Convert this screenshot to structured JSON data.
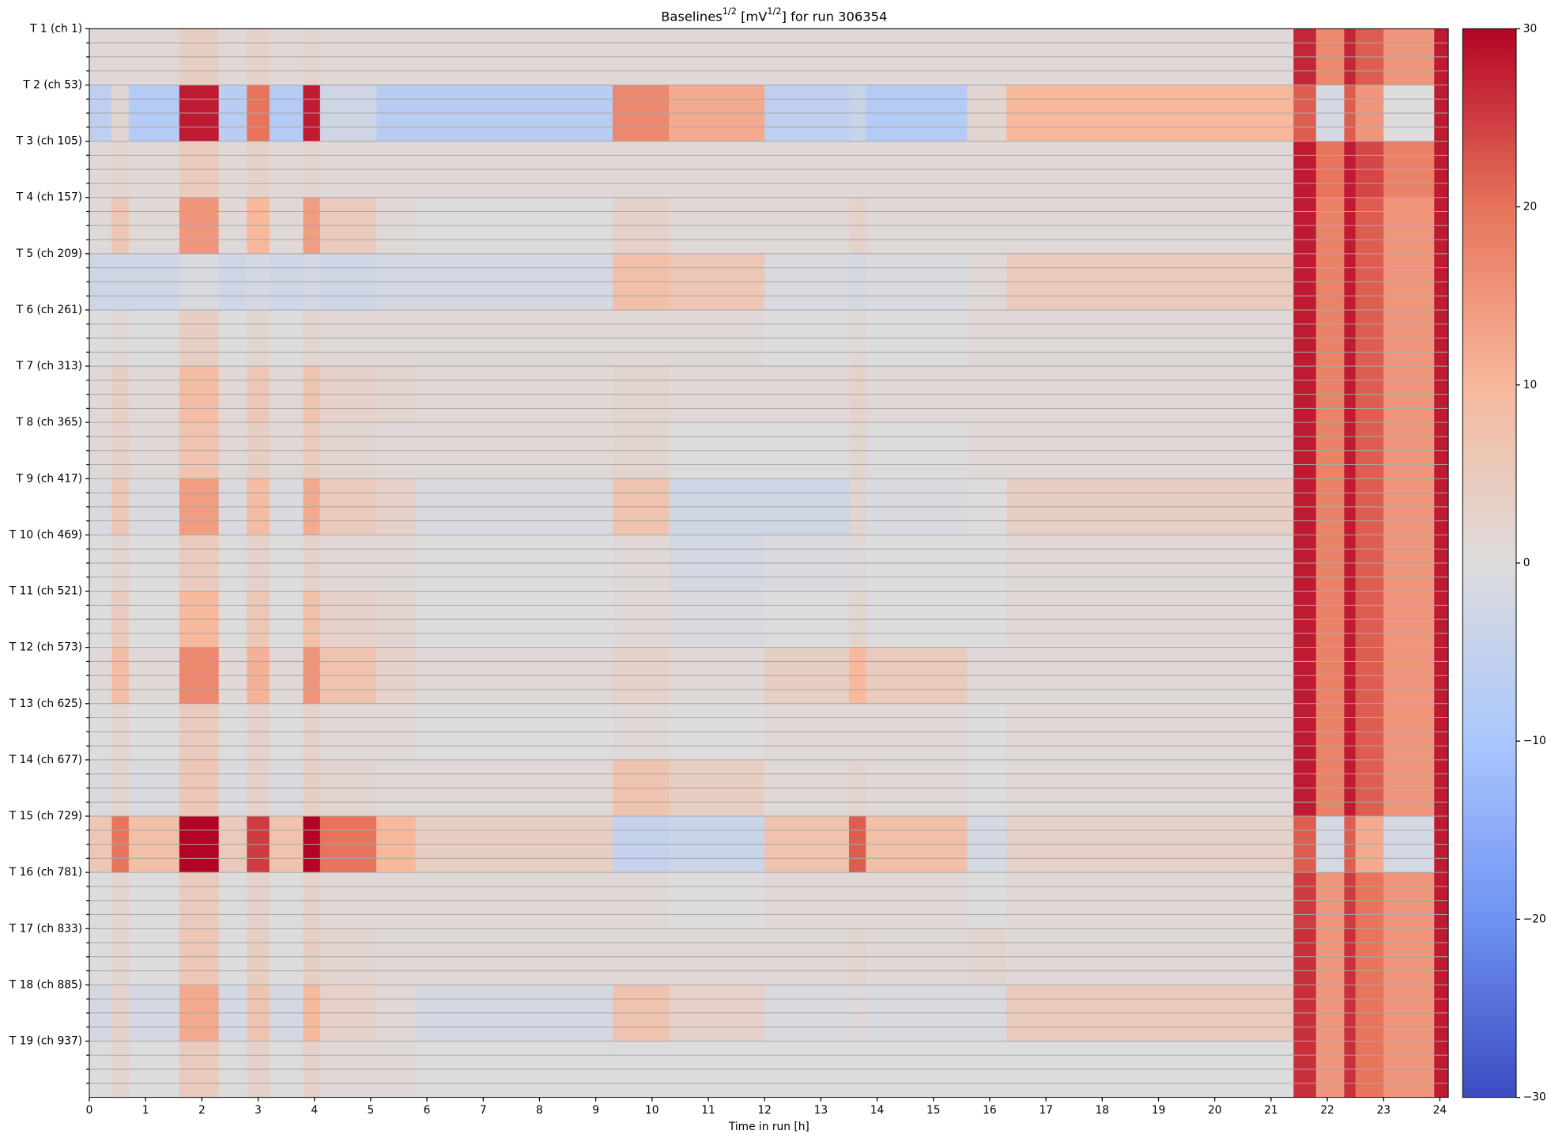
{
  "chart_data": {
    "type": "heatmap",
    "title": [
      "Baselines",
      "1/2",
      " [mV",
      "1/2",
      "] for run 306354"
    ],
    "xlabel": "Time in run [h]",
    "x_edges": [
      0,
      0.4,
      0.7,
      1.6,
      2.3,
      2.8,
      3.2,
      3.8,
      4.1,
      5.1,
      5.8,
      9.3,
      10.3,
      12.0,
      13.5,
      13.8,
      15.6,
      16.3,
      21.4,
      21.8,
      22.3,
      22.5,
      23.0,
      23.9,
      24.15
    ],
    "xlim": [
      0,
      24.15
    ],
    "xticks": [
      0,
      1,
      2,
      3,
      4,
      5,
      6,
      7,
      8,
      9,
      10,
      11,
      12,
      13,
      14,
      15,
      16,
      17,
      18,
      19,
      20,
      21,
      22,
      23,
      24
    ],
    "ylim": [
      0,
      19
    ],
    "yticks": [
      {
        "value": 0,
        "label": "T 1 (ch 1)"
      },
      {
        "value": 1,
        "label": "T 2 (ch 53)"
      },
      {
        "value": 2,
        "label": "T 3 (ch 105)"
      },
      {
        "value": 3,
        "label": "T 4 (ch 157)"
      },
      {
        "value": 4,
        "label": "T 5 (ch 209)"
      },
      {
        "value": 5,
        "label": "T 6 (ch 261)"
      },
      {
        "value": 6,
        "label": "T 7 (ch 313)"
      },
      {
        "value": 7,
        "label": "T 8 (ch 365)"
      },
      {
        "value": 8,
        "label": "T 9 (ch 417)"
      },
      {
        "value": 9,
        "label": "T 10 (ch 469)"
      },
      {
        "value": 10,
        "label": "T 11 (ch 521)"
      },
      {
        "value": 11,
        "label": "T 12 (ch 573)"
      },
      {
        "value": 12,
        "label": "T 13 (ch 625)"
      },
      {
        "value": 13,
        "label": "T 14 (ch 677)"
      },
      {
        "value": 14,
        "label": "T 15 (ch 729)"
      },
      {
        "value": 15,
        "label": "T 16 (ch 781)"
      },
      {
        "value": 16,
        "label": "T 17 (ch 833)"
      },
      {
        "value": 17,
        "label": "T 18 (ch 885)"
      },
      {
        "value": 18,
        "label": "T 19 (ch 937)"
      }
    ],
    "yminor": [
      0.25,
      0.5,
      0.75,
      1.25,
      1.5,
      1.75,
      2.25,
      2.5,
      2.75,
      3.25,
      3.5,
      3.75,
      4.25,
      4.5,
      4.75,
      5.25,
      5.5,
      5.75,
      6.25,
      6.5,
      6.75,
      7.25,
      7.5,
      7.75,
      8.25,
      8.5,
      8.75,
      9.25,
      9.5,
      9.75,
      10.25,
      10.5,
      10.75,
      11.25,
      11.5,
      11.75,
      12.25,
      12.5,
      12.75,
      13.25,
      13.5,
      13.75,
      14.25,
      14.5,
      14.75,
      15.25,
      15.5,
      15.75,
      16.25,
      16.5,
      16.75,
      17.25,
      17.5,
      17.75,
      18.25,
      18.5,
      18.75
    ],
    "grid": true,
    "z": [
      [
        1,
        1,
        1,
        4,
        1,
        3,
        1,
        2,
        1,
        1,
        1,
        1,
        1,
        1,
        1,
        1,
        1,
        1,
        27,
        17,
        27,
        22,
        15,
        28
      ],
      [
        -6,
        2,
        -8,
        28,
        -7,
        20,
        -8,
        28,
        -3,
        -7,
        -7,
        17,
        12,
        -6,
        -4,
        -8,
        2,
        10,
        22,
        -2,
        22,
        15,
        0,
        28
      ],
      [
        1,
        2,
        1,
        5,
        1,
        3,
        1,
        2,
        1,
        1,
        1,
        1,
        1,
        1,
        1,
        1,
        1,
        1,
        28,
        20,
        28,
        24,
        18,
        28
      ],
      [
        1,
        6,
        1,
        15,
        1,
        10,
        1,
        14,
        5,
        1,
        0,
        3,
        1,
        1,
        3,
        1,
        1,
        1,
        28,
        18,
        28,
        22,
        15,
        28
      ],
      [
        -3,
        -3,
        -3,
        -1,
        -3,
        -2,
        -3,
        -2,
        -3,
        -2,
        -2,
        8,
        6,
        -1,
        -2,
        -1,
        1,
        5,
        28,
        18,
        28,
        22,
        15,
        28
      ],
      [
        0,
        1,
        0,
        4,
        0,
        2,
        0,
        2,
        1,
        1,
        1,
        1,
        1,
        0,
        1,
        0,
        1,
        1,
        28,
        18,
        28,
        22,
        15,
        28
      ],
      [
        1,
        4,
        1,
        9,
        1,
        6,
        1,
        7,
        3,
        2,
        1,
        2,
        1,
        1,
        3,
        1,
        1,
        1,
        28,
        18,
        28,
        22,
        15,
        28
      ],
      [
        1,
        3,
        1,
        7,
        1,
        4,
        1,
        5,
        2,
        1,
        1,
        2,
        0,
        0,
        2,
        0,
        1,
        1,
        28,
        18,
        28,
        22,
        15,
        28
      ],
      [
        -1,
        6,
        -1,
        14,
        -1,
        9,
        -1,
        12,
        5,
        3,
        -1,
        7,
        -3,
        -3,
        2,
        -1,
        0,
        4,
        28,
        18,
        28,
        22,
        15,
        28
      ],
      [
        0,
        2,
        0,
        5,
        0,
        3,
        0,
        3,
        1,
        1,
        0,
        1,
        -2,
        -1,
        1,
        0,
        0,
        1,
        28,
        18,
        28,
        22,
        15,
        28
      ],
      [
        0,
        5,
        0,
        10,
        0,
        6,
        0,
        8,
        3,
        2,
        0,
        1,
        -1,
        0,
        2,
        0,
        0,
        1,
        28,
        18,
        28,
        22,
        15,
        28
      ],
      [
        1,
        9,
        1,
        17,
        1,
        11,
        1,
        15,
        7,
        3,
        1,
        3,
        1,
        4,
        10,
        5,
        1,
        1,
        28,
        18,
        28,
        22,
        15,
        28
      ],
      [
        0,
        2,
        0,
        5,
        0,
        3,
        0,
        3,
        1,
        1,
        0,
        1,
        0,
        1,
        1,
        1,
        0,
        1,
        28,
        18,
        28,
        22,
        15,
        28
      ],
      [
        -1,
        2,
        -1,
        6,
        -1,
        3,
        -1,
        4,
        2,
        1,
        1,
        7,
        4,
        1,
        2,
        1,
        0,
        1,
        28,
        18,
        28,
        22,
        15,
        28
      ],
      [
        6,
        20,
        8,
        30,
        5,
        25,
        7,
        30,
        20,
        10,
        4,
        -5,
        -4,
        7,
        22,
        8,
        -2,
        3,
        22,
        -2,
        22,
        12,
        -2,
        28
      ],
      [
        0,
        2,
        0,
        5,
        0,
        3,
        0,
        3,
        1,
        1,
        1,
        1,
        0,
        1,
        1,
        1,
        0,
        1,
        25,
        15,
        25,
        20,
        15,
        28
      ],
      [
        0,
        2,
        0,
        6,
        0,
        4,
        0,
        4,
        2,
        1,
        1,
        1,
        1,
        1,
        2,
        1,
        2,
        1,
        26,
        15,
        26,
        20,
        15,
        28
      ],
      [
        -2,
        3,
        -2,
        12,
        -2,
        7,
        -2,
        10,
        3,
        1,
        -2,
        7,
        3,
        -1,
        1,
        -1,
        -1,
        5,
        26,
        15,
        26,
        20,
        15,
        28
      ],
      [
        0,
        2,
        0,
        5,
        0,
        3,
        0,
        3,
        1,
        1,
        0,
        0,
        0,
        0,
        0,
        0,
        0,
        0,
        26,
        15,
        26,
        20,
        15,
        28
      ]
    ],
    "zlim": [
      -30,
      30
    ],
    "zticks": [
      {
        "value": -30,
        "label": "−30"
      },
      {
        "value": -20,
        "label": "−20"
      },
      {
        "value": -10,
        "label": "−10"
      },
      0,
      10,
      20,
      30
    ],
    "colorscale": [
      "#3b4cc0",
      "#6f92f3",
      "#aac7fd",
      "#dddcdc",
      "#f7b89c",
      "#e7745b",
      "#b40426"
    ]
  }
}
